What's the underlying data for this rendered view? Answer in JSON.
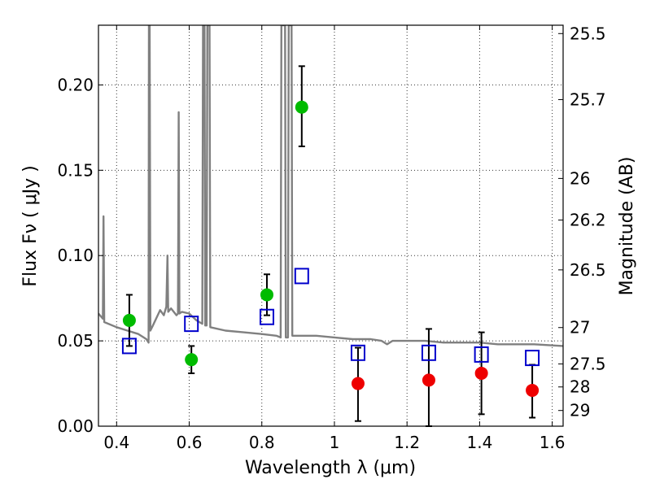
{
  "chart_data": {
    "type": "scatter",
    "title": "",
    "xlabel": "Wavelength  λ (μm)",
    "ylabel": "Flux  Fν  ( μJy )",
    "ylabel_right": "Magnitude (AB)",
    "xlim": [
      0.35,
      1.63
    ],
    "ylim": [
      0.0,
      0.235
    ],
    "grid": true,
    "xticks": [
      0.4,
      0.6,
      0.8,
      1.0,
      1.2,
      1.4,
      1.6
    ],
    "xtick_labels": [
      "0.4",
      "0.6",
      "0.8",
      "1",
      "1.2",
      "1.4",
      "1.6"
    ],
    "yticks": [
      0.0,
      0.05,
      0.1,
      0.15,
      0.2
    ],
    "ytick_labels": [
      "0.00",
      "0.05",
      "0.10",
      "0.15",
      "0.20"
    ],
    "right_ticks": [
      {
        "label": "25.5",
        "flux": 0.2301
      },
      {
        "label": "25.7",
        "flux": 0.1914
      },
      {
        "label": "26",
        "flux": 0.1452
      },
      {
        "label": "26.2",
        "flux": 0.1208
      },
      {
        "label": "26.5",
        "flux": 0.0916
      },
      {
        "label": "27",
        "flux": 0.0578
      },
      {
        "label": "27.5",
        "flux": 0.0365
      },
      {
        "label": "28",
        "flux": 0.023
      },
      {
        "label": "29",
        "flux": 0.0092
      }
    ],
    "series": [
      {
        "type": "errorbar",
        "color": "#00bb00",
        "points": [
          {
            "x": 0.435,
            "y": 0.062,
            "yerr": [
              0.047,
              0.077
            ]
          },
          {
            "x": 0.606,
            "y": 0.039,
            "yerr": [
              0.031,
              0.047
            ]
          },
          {
            "x": 0.814,
            "y": 0.077,
            "yerr": [
              0.065,
              0.089
            ]
          },
          {
            "x": 0.91,
            "y": 0.187,
            "yerr": [
              0.164,
              0.211
            ]
          }
        ]
      },
      {
        "type": "errorbar",
        "color": "#ee0000",
        "points": [
          {
            "x": 1.065,
            "y": 0.025,
            "yerr": [
              0.003,
              0.046
            ]
          },
          {
            "x": 1.26,
            "y": 0.027,
            "yerr": [
              0.0,
              0.057
            ]
          },
          {
            "x": 1.405,
            "y": 0.031,
            "yerr": [
              0.007,
              0.055
            ]
          },
          {
            "x": 1.545,
            "y": 0.021,
            "yerr": [
              0.005,
              0.036
            ]
          }
        ]
      },
      {
        "type": "model-squares",
        "color": "#0000cc",
        "points": [
          {
            "x": 0.435,
            "y": 0.047
          },
          {
            "x": 0.606,
            "y": 0.06
          },
          {
            "x": 0.814,
            "y": 0.064
          },
          {
            "x": 0.91,
            "y": 0.088
          },
          {
            "x": 1.065,
            "y": 0.043
          },
          {
            "x": 1.26,
            "y": 0.043
          },
          {
            "x": 1.405,
            "y": 0.042
          },
          {
            "x": 1.545,
            "y": 0.04
          }
        ]
      }
    ],
    "spectrum": {
      "color": "#808080",
      "points": [
        [
          0.35,
          0.066
        ],
        [
          0.362,
          0.063
        ],
        [
          0.364,
          0.123
        ],
        [
          0.366,
          0.061
        ],
        [
          0.4,
          0.058
        ],
        [
          0.43,
          0.056
        ],
        [
          0.46,
          0.054
        ],
        [
          0.482,
          0.051
        ],
        [
          0.488,
          0.049
        ],
        [
          0.489,
          0.235
        ],
        [
          0.491,
          0.235
        ],
        [
          0.493,
          0.056
        ],
        [
          0.5,
          0.059
        ],
        [
          0.52,
          0.068
        ],
        [
          0.53,
          0.065
        ],
        [
          0.537,
          0.07
        ],
        [
          0.54,
          0.1
        ],
        [
          0.542,
          0.067
        ],
        [
          0.55,
          0.069
        ],
        [
          0.565,
          0.065
        ],
        [
          0.569,
          0.066
        ],
        [
          0.571,
          0.184
        ],
        [
          0.573,
          0.066
        ],
        [
          0.58,
          0.067
        ],
        [
          0.6,
          0.066
        ],
        [
          0.62,
          0.062
        ],
        [
          0.636,
          0.06
        ],
        [
          0.638,
          0.235
        ],
        [
          0.642,
          0.235
        ],
        [
          0.644,
          0.059
        ],
        [
          0.648,
          0.059
        ],
        [
          0.65,
          0.235
        ],
        [
          0.656,
          0.235
        ],
        [
          0.658,
          0.058
        ],
        [
          0.7,
          0.056
        ],
        [
          0.75,
          0.055
        ],
        [
          0.8,
          0.054
        ],
        [
          0.84,
          0.053
        ],
        [
          0.852,
          0.052
        ],
        [
          0.854,
          0.235
        ],
        [
          0.864,
          0.235
        ],
        [
          0.866,
          0.052
        ],
        [
          0.872,
          0.052
        ],
        [
          0.874,
          0.235
        ],
        [
          0.882,
          0.235
        ],
        [
          0.884,
          0.053
        ],
        [
          0.95,
          0.053
        ],
        [
          1.0,
          0.052
        ],
        [
          1.05,
          0.051
        ],
        [
          1.1,
          0.051
        ],
        [
          1.13,
          0.05
        ],
        [
          1.145,
          0.048
        ],
        [
          1.16,
          0.05
        ],
        [
          1.2,
          0.05
        ],
        [
          1.25,
          0.05
        ],
        [
          1.3,
          0.049
        ],
        [
          1.35,
          0.049
        ],
        [
          1.4,
          0.049
        ],
        [
          1.45,
          0.048
        ],
        [
          1.5,
          0.048
        ],
        [
          1.55,
          0.048
        ],
        [
          1.63,
          0.047
        ]
      ]
    }
  }
}
